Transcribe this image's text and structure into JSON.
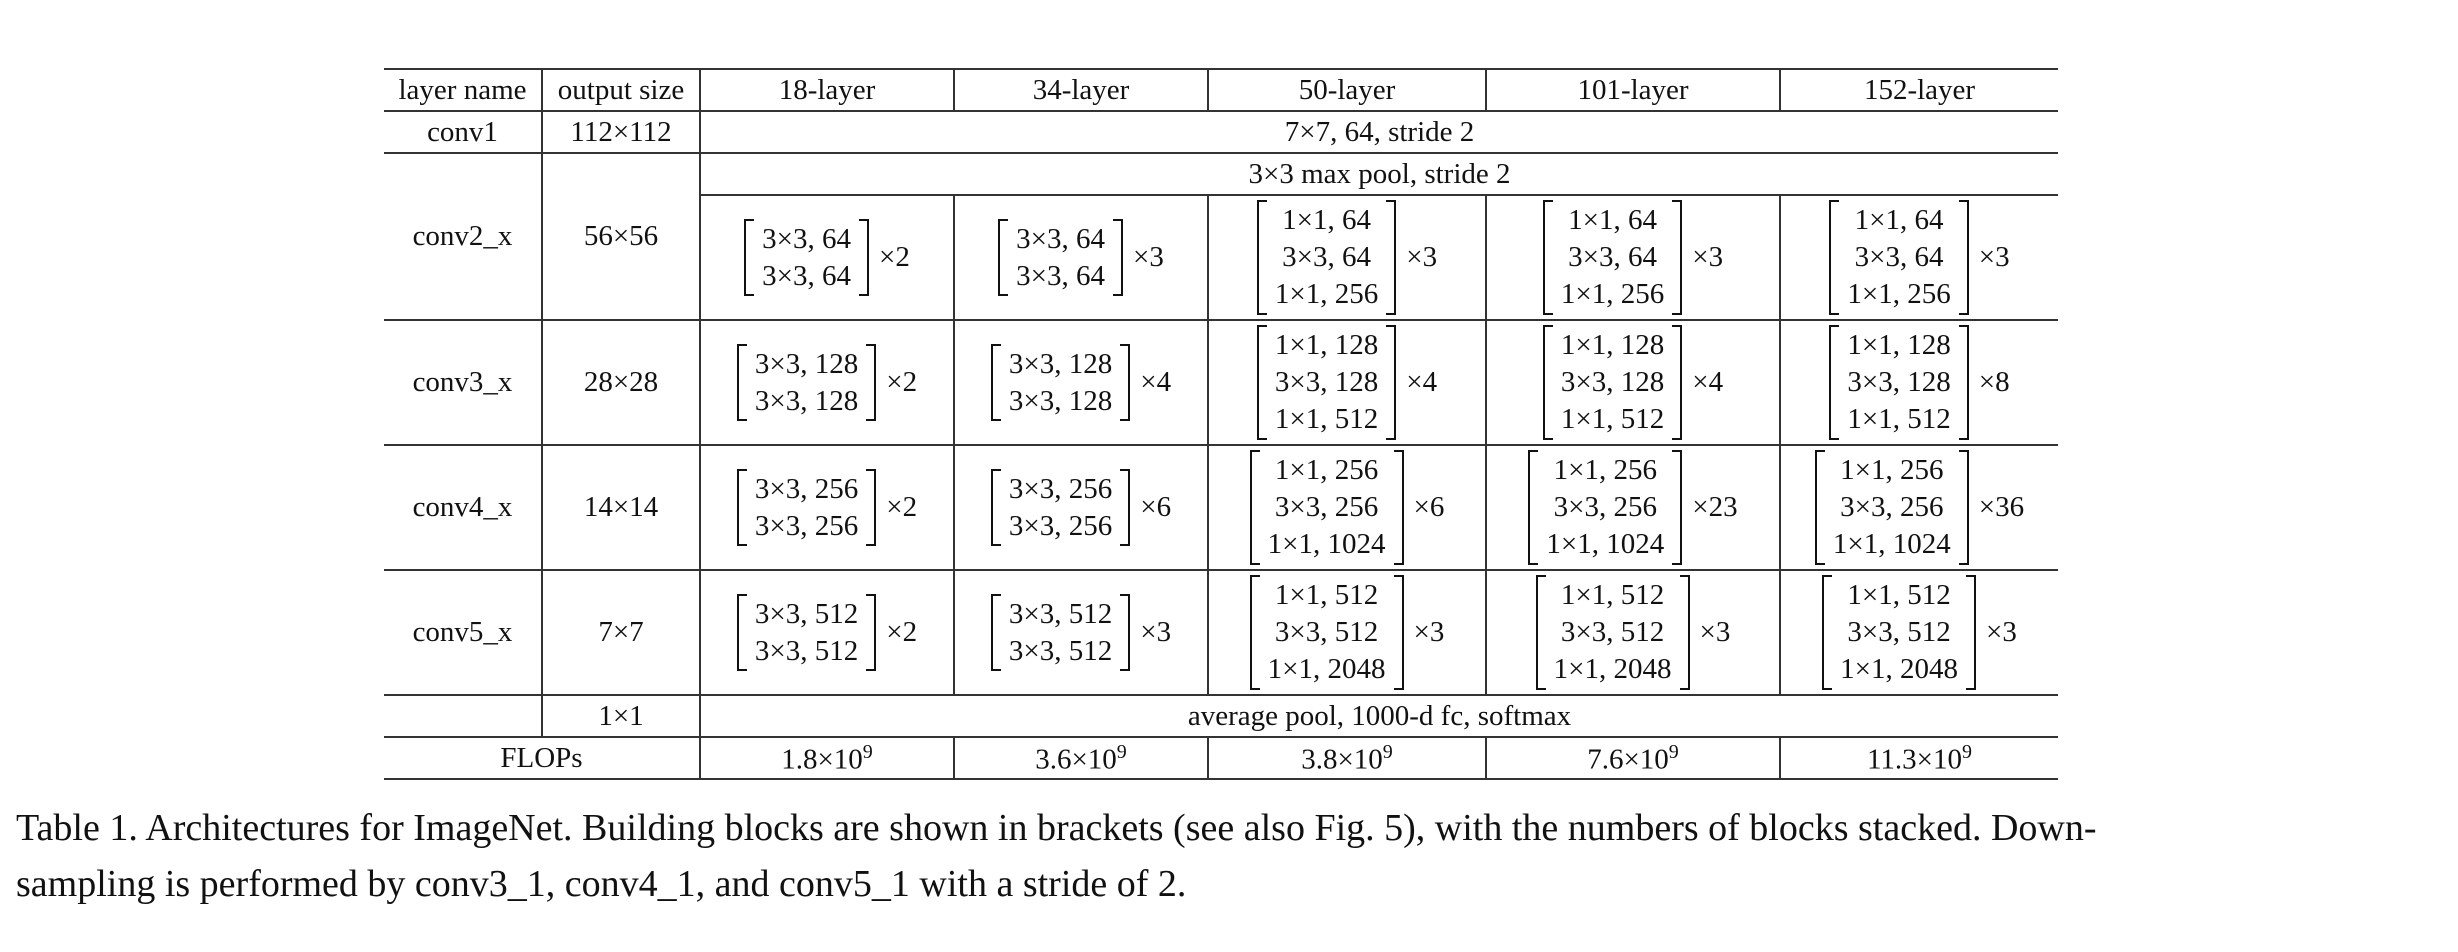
{
  "table": {
    "header": [
      "layer name",
      "output size",
      "18-layer",
      "34-layer",
      "50-layer",
      "101-layer",
      "152-layer"
    ],
    "conv1": {
      "name": "conv1",
      "output": "112×112",
      "spec": "7×7, 64, stride 2"
    },
    "maxpool": {
      "spec": "3×3 max pool, stride 2"
    },
    "stages": [
      {
        "name": "conv2_x",
        "output": "56×56",
        "cells": [
          {
            "lines": [
              "3×3, 64",
              "3×3, 64"
            ],
            "mult": "×2"
          },
          {
            "lines": [
              "3×3, 64",
              "3×3, 64"
            ],
            "mult": "×3"
          },
          {
            "lines": [
              "1×1, 64",
              "3×3, 64",
              "1×1, 256"
            ],
            "mult": "×3"
          },
          {
            "lines": [
              "1×1, 64",
              "3×3, 64",
              "1×1, 256"
            ],
            "mult": "×3"
          },
          {
            "lines": [
              "1×1, 64",
              "3×3, 64",
              "1×1, 256"
            ],
            "mult": "×3"
          }
        ]
      },
      {
        "name": "conv3_x",
        "output": "28×28",
        "cells": [
          {
            "lines": [
              "3×3, 128",
              "3×3, 128"
            ],
            "mult": "×2"
          },
          {
            "lines": [
              "3×3, 128",
              "3×3, 128"
            ],
            "mult": "×4"
          },
          {
            "lines": [
              "1×1, 128",
              "3×3, 128",
              "1×1, 512"
            ],
            "mult": "×4"
          },
          {
            "lines": [
              "1×1, 128",
              "3×3, 128",
              "1×1, 512"
            ],
            "mult": "×4"
          },
          {
            "lines": [
              "1×1, 128",
              "3×3, 128",
              "1×1, 512"
            ],
            "mult": "×8"
          }
        ]
      },
      {
        "name": "conv4_x",
        "output": "14×14",
        "cells": [
          {
            "lines": [
              "3×3, 256",
              "3×3, 256"
            ],
            "mult": "×2"
          },
          {
            "lines": [
              "3×3, 256",
              "3×3, 256"
            ],
            "mult": "×6"
          },
          {
            "lines": [
              "1×1, 256",
              "3×3, 256",
              "1×1, 1024"
            ],
            "mult": "×6"
          },
          {
            "lines": [
              "1×1, 256",
              "3×3, 256",
              "1×1, 1024"
            ],
            "mult": "×23"
          },
          {
            "lines": [
              "1×1, 256",
              "3×3, 256",
              "1×1, 1024"
            ],
            "mult": "×36"
          }
        ]
      },
      {
        "name": "conv5_x",
        "output": "7×7",
        "cells": [
          {
            "lines": [
              "3×3, 512",
              "3×3, 512"
            ],
            "mult": "×2"
          },
          {
            "lines": [
              "3×3, 512",
              "3×3, 512"
            ],
            "mult": "×3"
          },
          {
            "lines": [
              "1×1, 512",
              "3×3, 512",
              "1×1, 2048"
            ],
            "mult": "×3"
          },
          {
            "lines": [
              "1×1, 512",
              "3×3, 512",
              "1×1, 2048"
            ],
            "mult": "×3"
          },
          {
            "lines": [
              "1×1, 512",
              "3×3, 512",
              "1×1, 2048"
            ],
            "mult": "×3"
          }
        ]
      }
    ],
    "final": {
      "output": "1×1",
      "spec": "average pool, 1000-d fc, softmax"
    },
    "flops": {
      "label": "FLOPs",
      "values": [
        {
          "base": "1.8×10",
          "exp": "9"
        },
        {
          "base": "3.6×10",
          "exp": "9"
        },
        {
          "base": "3.8×10",
          "exp": "9"
        },
        {
          "base": "7.6×10",
          "exp": "9"
        },
        {
          "base": "11.3×10",
          "exp": "9"
        }
      ]
    }
  },
  "caption": {
    "line1": "Table 1. Architectures for ImageNet. Building blocks are shown in brackets (see also Fig. 5), with the numbers of blocks stacked. Down-",
    "line2": "sampling is performed by conv3_1, conv4_1, and conv5_1 with a stride of 2."
  }
}
